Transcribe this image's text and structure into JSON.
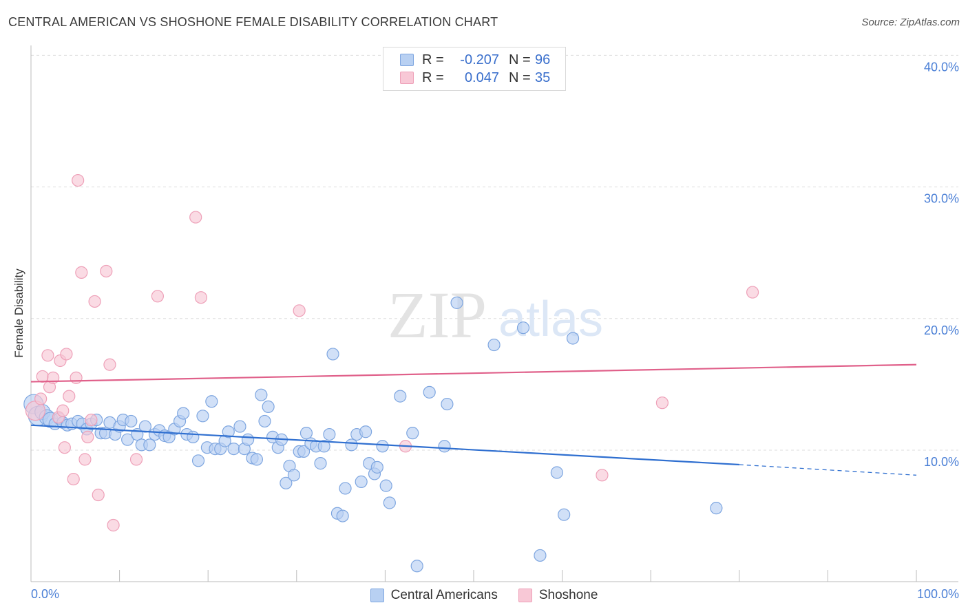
{
  "title": "CENTRAL AMERICAN VS SHOSHONE FEMALE DISABILITY CORRELATION CHART",
  "source": "Source: ZipAtlas.com",
  "watermark": {
    "zip": "ZIP",
    "atlas": "atlas"
  },
  "legend": {
    "rows": [
      {
        "r_label": "R =",
        "r_value": "-0.207",
        "n_label": "N =",
        "n_value": "96",
        "fill": "#b8d0f2",
        "stroke": "#7ea6e0"
      },
      {
        "r_label": "R =",
        "r_value": "0.047",
        "n_label": "N =",
        "n_value": "35",
        "fill": "#f8c8d6",
        "stroke": "#eea0b8"
      }
    ]
  },
  "bottom_legend": [
    {
      "label": "Central Americans",
      "fill": "#b8d0f2",
      "stroke": "#7ea6e0"
    },
    {
      "label": "Shoshone",
      "fill": "#f8c8d6",
      "stroke": "#eea0b8"
    }
  ],
  "chart_data": {
    "type": "scatter",
    "title": "CENTRAL AMERICAN VS SHOSHONE FEMALE DISABILITY CORRELATION CHART",
    "xlabel": "",
    "ylabel": "Female Disability",
    "xlim": [
      0,
      100
    ],
    "ylim": [
      0,
      42
    ],
    "x_tick_labels": [
      {
        "value": 0,
        "label": "0.0%"
      },
      {
        "value": 100,
        "label": "100.0%"
      }
    ],
    "y_tick_labels": [
      {
        "value": 10,
        "label": "10.0%"
      },
      {
        "value": 20,
        "label": "20.0%"
      },
      {
        "value": 30,
        "label": "30.0%"
      },
      {
        "value": 40,
        "label": "40.0%"
      }
    ],
    "grid": true,
    "colors": {
      "central_fill": "#b8d0f2",
      "central_stroke": "#7ea6e0",
      "central_line": "#2f6fd0",
      "shoshone_fill": "#f8c8d6",
      "shoshone_stroke": "#eea0b8",
      "shoshone_line": "#e0608a",
      "tick_label": "#4a7fd6",
      "grid": "#dddddd"
    },
    "series": [
      {
        "name": "Central Americans",
        "trend": {
          "x": [
            0,
            80
          ],
          "y": [
            11.9,
            8.9
          ],
          "dashed_to": [
            100,
            8.1
          ]
        },
        "points": [
          [
            0.3,
            13.5,
            2
          ],
          [
            0.8,
            12.6,
            2
          ],
          [
            1.3,
            12.9,
            1
          ],
          [
            1.8,
            12.5,
            1
          ],
          [
            2.2,
            12.3,
            1
          ],
          [
            2.7,
            12.0,
            0
          ],
          [
            3.2,
            12.4,
            0
          ],
          [
            3.6,
            12.1,
            0
          ],
          [
            4.1,
            11.9,
            0
          ],
          [
            4.6,
            12.0,
            0
          ],
          [
            5.3,
            12.2,
            0
          ],
          [
            5.8,
            12.0,
            0
          ],
          [
            6.3,
            11.6,
            0
          ],
          [
            6.8,
            12.0,
            0
          ],
          [
            7.4,
            12.3,
            0
          ],
          [
            7.9,
            11.3,
            0
          ],
          [
            8.4,
            11.3,
            0
          ],
          [
            8.9,
            12.1,
            0
          ],
          [
            9.5,
            11.2,
            0
          ],
          [
            10.0,
            11.8,
            0
          ],
          [
            10.4,
            12.3,
            0
          ],
          [
            10.9,
            10.8,
            0
          ],
          [
            11.3,
            12.2,
            0
          ],
          [
            12.0,
            11.2,
            0
          ],
          [
            12.5,
            10.4,
            0
          ],
          [
            12.9,
            11.8,
            0
          ],
          [
            13.4,
            10.4,
            0
          ],
          [
            14.0,
            11.2,
            0
          ],
          [
            14.5,
            11.5,
            0
          ],
          [
            15.1,
            11.1,
            0
          ],
          [
            15.6,
            11.0,
            0
          ],
          [
            16.2,
            11.6,
            0
          ],
          [
            16.8,
            12.2,
            0
          ],
          [
            17.2,
            12.8,
            0
          ],
          [
            17.6,
            11.2,
            0
          ],
          [
            18.3,
            11.0,
            0
          ],
          [
            18.9,
            9.2,
            0
          ],
          [
            19.4,
            12.6,
            0
          ],
          [
            19.9,
            10.2,
            0
          ],
          [
            20.4,
            13.7,
            0
          ],
          [
            20.8,
            10.1,
            0
          ],
          [
            21.4,
            10.1,
            0
          ],
          [
            21.9,
            10.7,
            0
          ],
          [
            22.3,
            11.4,
            0
          ],
          [
            22.9,
            10.1,
            0
          ],
          [
            23.6,
            11.8,
            0
          ],
          [
            24.1,
            10.1,
            0
          ],
          [
            24.5,
            10.8,
            0
          ],
          [
            25.0,
            9.4,
            0
          ],
          [
            25.5,
            9.3,
            0
          ],
          [
            26.0,
            14.2,
            0
          ],
          [
            26.4,
            12.2,
            0
          ],
          [
            26.8,
            13.3,
            0
          ],
          [
            27.3,
            11.0,
            0
          ],
          [
            27.9,
            10.2,
            0
          ],
          [
            28.3,
            10.8,
            0
          ],
          [
            28.8,
            7.5,
            0
          ],
          [
            29.2,
            8.8,
            0
          ],
          [
            29.7,
            8.1,
            0
          ],
          [
            30.3,
            9.9,
            0
          ],
          [
            30.8,
            9.9,
            0
          ],
          [
            31.1,
            11.3,
            0
          ],
          [
            31.6,
            10.5,
            0
          ],
          [
            32.2,
            10.3,
            0
          ],
          [
            32.7,
            9.0,
            0
          ],
          [
            33.1,
            10.3,
            0
          ],
          [
            33.7,
            11.2,
            0
          ],
          [
            34.1,
            17.3,
            0
          ],
          [
            34.6,
            5.2,
            0
          ],
          [
            35.2,
            5.0,
            0
          ],
          [
            35.5,
            7.1,
            0
          ],
          [
            36.2,
            10.4,
            0
          ],
          [
            36.8,
            11.2,
            0
          ],
          [
            37.3,
            7.6,
            0
          ],
          [
            37.8,
            11.4,
            0
          ],
          [
            38.2,
            9.0,
            0
          ],
          [
            38.8,
            8.2,
            0
          ],
          [
            39.1,
            8.7,
            0
          ],
          [
            39.7,
            10.3,
            0
          ],
          [
            40.1,
            7.3,
            0
          ],
          [
            40.5,
            6.0,
            0
          ],
          [
            41.7,
            14.1,
            0
          ],
          [
            43.1,
            11.3,
            0
          ],
          [
            43.6,
            1.2,
            0
          ],
          [
            45.0,
            14.4,
            0
          ],
          [
            46.7,
            10.3,
            0
          ],
          [
            47.0,
            13.5,
            0
          ],
          [
            48.1,
            21.2,
            0
          ],
          [
            52.3,
            18.0,
            0
          ],
          [
            55.6,
            19.3,
            0
          ],
          [
            57.5,
            2.0,
            0
          ],
          [
            59.4,
            8.3,
            0
          ],
          [
            60.2,
            5.1,
            0
          ],
          [
            61.2,
            18.5,
            0
          ],
          [
            77.4,
            5.6,
            0
          ]
        ]
      },
      {
        "name": "Shoshone",
        "trend": {
          "x": [
            0,
            100
          ],
          "y": [
            15.2,
            16.5
          ]
        },
        "points": [
          [
            0.5,
            13.0,
            2
          ],
          [
            1.1,
            13.9,
            0
          ],
          [
            1.3,
            15.6,
            0
          ],
          [
            1.9,
            17.2,
            0
          ],
          [
            2.1,
            14.8,
            0
          ],
          [
            2.5,
            15.5,
            0
          ],
          [
            3.1,
            12.5,
            0
          ],
          [
            3.3,
            16.8,
            0
          ],
          [
            3.6,
            13.0,
            0
          ],
          [
            3.8,
            10.2,
            0
          ],
          [
            4.0,
            17.3,
            0
          ],
          [
            4.3,
            14.1,
            0
          ],
          [
            4.8,
            7.8,
            0
          ],
          [
            5.1,
            15.5,
            0
          ],
          [
            5.3,
            30.5,
            0
          ],
          [
            5.7,
            23.5,
            0
          ],
          [
            6.1,
            9.3,
            0
          ],
          [
            6.4,
            11.0,
            0
          ],
          [
            6.8,
            12.3,
            0
          ],
          [
            7.2,
            21.3,
            0
          ],
          [
            7.6,
            6.6,
            0
          ],
          [
            8.5,
            23.6,
            0
          ],
          [
            8.9,
            16.5,
            0
          ],
          [
            9.3,
            4.3,
            0
          ],
          [
            11.9,
            9.3,
            0
          ],
          [
            14.3,
            21.7,
            0
          ],
          [
            18.6,
            27.7,
            0
          ],
          [
            19.2,
            21.6,
            0
          ],
          [
            30.3,
            20.6,
            0
          ],
          [
            42.3,
            10.3,
            0
          ],
          [
            64.5,
            8.1,
            0
          ],
          [
            71.3,
            13.6,
            0
          ],
          [
            81.5,
            22.0,
            0
          ]
        ]
      }
    ]
  }
}
